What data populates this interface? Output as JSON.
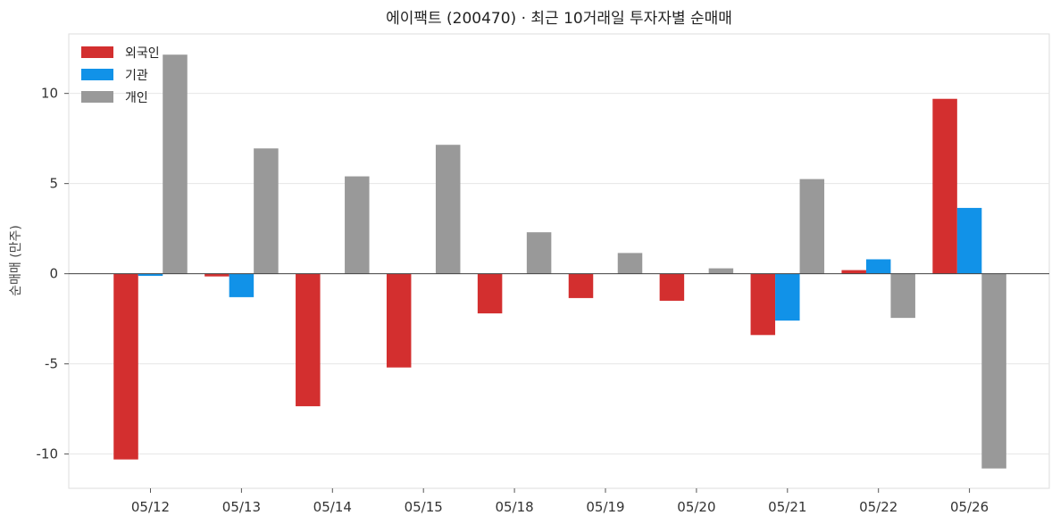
{
  "chart_data": {
    "type": "bar",
    "title": "에이팩트 (200470) · 최근 10거래일 투자자별 순매매",
    "xlabel": "",
    "ylabel": "순매매 (만주)",
    "categories": [
      "05/12",
      "05/13",
      "05/14",
      "05/15",
      "05/18",
      "05/19",
      "05/20",
      "05/21",
      "05/22",
      "05/26"
    ],
    "series": [
      {
        "name": "외국인",
        "color": "#d32f2f",
        "values": [
          -10.3,
          -0.15,
          -7.35,
          -5.2,
          -2.2,
          -1.35,
          -1.5,
          -3.4,
          0.2,
          9.7
        ]
      },
      {
        "name": "기관",
        "color": "#1192e8",
        "values": [
          -0.12,
          -1.3,
          0,
          0,
          0,
          0,
          0,
          -2.6,
          0.8,
          3.65
        ]
      },
      {
        "name": "개인",
        "color": "#999999",
        "values": [
          12.15,
          6.95,
          5.4,
          7.15,
          2.3,
          1.15,
          0.3,
          5.25,
          -2.45,
          -10.8
        ]
      }
    ],
    "yticks": [
      -10,
      -5,
      0,
      5,
      10
    ],
    "ylim": [
      -11.9,
      13.3
    ],
    "grid": true,
    "legend": "top-left"
  }
}
